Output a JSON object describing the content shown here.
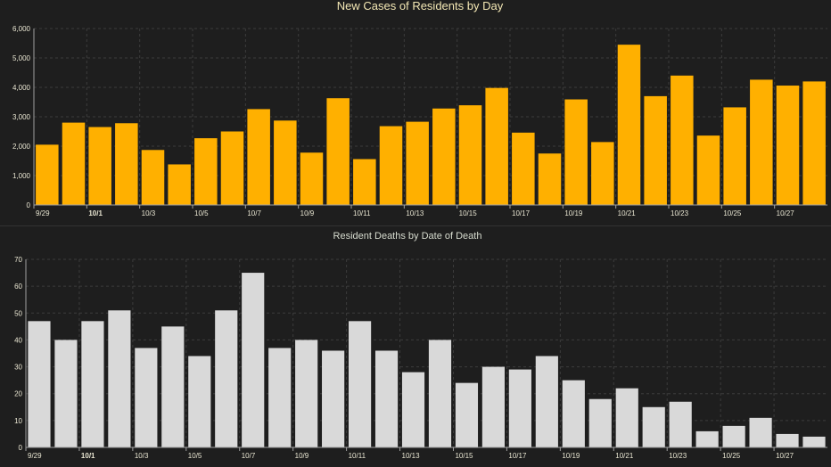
{
  "colors": {
    "background": "#1e1e1e",
    "cases_bar": "#ffb000",
    "deaths_bar": "#d9d9d9",
    "grid": "#3c3c3c",
    "axis": "#a0a0a0",
    "divider": "#333333"
  },
  "chart_data": [
    {
      "type": "bar",
      "title": "New Cases of Residents by Day",
      "xlabel": "",
      "ylabel": "",
      "ylim": [
        0,
        6000
      ],
      "yticks": [
        "0",
        "1,000",
        "2,000",
        "3,000",
        "4,000",
        "5,000",
        "6,000"
      ],
      "grid": true,
      "categories": [
        "9/29",
        "9/30",
        "10/1",
        "10/2",
        "10/3",
        "10/4",
        "10/5",
        "10/6",
        "10/7",
        "10/8",
        "10/9",
        "10/10",
        "10/11",
        "10/12",
        "10/13",
        "10/14",
        "10/15",
        "10/16",
        "10/17",
        "10/18",
        "10/19",
        "10/20",
        "10/21",
        "10/22",
        "10/23",
        "10/24",
        "10/25",
        "10/26",
        "10/27",
        "10/28"
      ],
      "xtick_labels": [
        "9/29",
        "10/1",
        "10/3",
        "10/5",
        "10/7",
        "10/9",
        "10/11",
        "10/13",
        "10/15",
        "10/17",
        "10/19",
        "10/21",
        "10/23",
        "10/25",
        "10/27"
      ],
      "bold_tick": "10/1",
      "values": [
        2050,
        2800,
        2650,
        2780,
        1870,
        1380,
        2270,
        2500,
        3260,
        2870,
        1780,
        3630,
        1560,
        2680,
        2830,
        3280,
        3390,
        3980,
        2460,
        1750,
        3590,
        2140,
        5450,
        3700,
        4400,
        2360,
        3320,
        4260,
        4060,
        4200
      ]
    },
    {
      "type": "bar",
      "title": "Resident Deaths by Date of Death",
      "xlabel": "",
      "ylabel": "",
      "ylim": [
        0,
        70
      ],
      "yticks": [
        "0",
        "10",
        "20",
        "30",
        "40",
        "50",
        "60",
        "70"
      ],
      "grid": true,
      "categories": [
        "9/29",
        "9/30",
        "10/1",
        "10/2",
        "10/3",
        "10/4",
        "10/5",
        "10/6",
        "10/7",
        "10/8",
        "10/9",
        "10/10",
        "10/11",
        "10/12",
        "10/13",
        "10/14",
        "10/15",
        "10/16",
        "10/17",
        "10/18",
        "10/19",
        "10/20",
        "10/21",
        "10/22",
        "10/23",
        "10/24",
        "10/25",
        "10/26",
        "10/27",
        "10/28"
      ],
      "xtick_labels": [
        "9/29",
        "10/1",
        "10/3",
        "10/5",
        "10/7",
        "10/9",
        "10/11",
        "10/13",
        "10/15",
        "10/17",
        "10/19",
        "10/21",
        "10/23",
        "10/25",
        "10/27"
      ],
      "bold_tick": "10/1",
      "values": [
        47,
        40,
        47,
        51,
        37,
        45,
        34,
        51,
        65,
        37,
        40,
        36,
        47,
        36,
        28,
        40,
        24,
        30,
        29,
        34,
        25,
        18,
        22,
        15,
        17,
        6,
        8,
        11,
        5,
        4
      ]
    }
  ]
}
